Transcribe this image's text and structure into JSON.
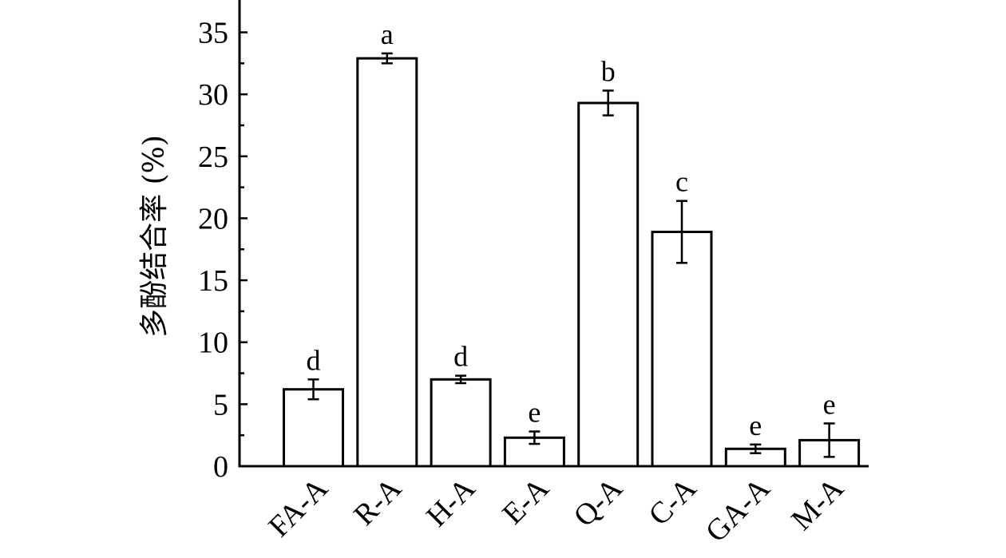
{
  "chart_data": {
    "type": "bar",
    "title": "",
    "xlabel": "",
    "ylabel": "多酚结合率 (%)",
    "ylim": [
      0,
      37
    ],
    "yticks": [
      0,
      5,
      10,
      15,
      20,
      25,
      30,
      35
    ],
    "grid": false,
    "categories": [
      "FA-A",
      "R-A",
      "H-A",
      "E-A",
      "Q-A",
      "C-A",
      "GA-A",
      "M-A"
    ],
    "values": [
      6.2,
      32.9,
      7.0,
      2.3,
      29.3,
      18.9,
      1.4,
      2.1
    ],
    "errors": [
      0.8,
      0.4,
      0.3,
      0.5,
      1.0,
      2.5,
      0.35,
      1.35
    ],
    "significance_letters": [
      "d",
      "a",
      "d",
      "e",
      "b",
      "c",
      "e",
      "e"
    ]
  }
}
